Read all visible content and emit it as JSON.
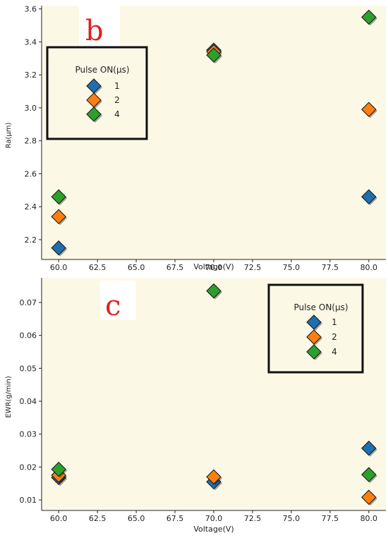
{
  "colors": {
    "plot_background": "#fbf9e6",
    "axis": "#222222",
    "panel_label": "#e02020",
    "legend_border": "#111111"
  },
  "chart_data": [
    {
      "type": "scatter",
      "panel_label": "b",
      "xlabel": "Voltage(V)",
      "ylabel": "Ra(µm)",
      "xlim": [
        58.9,
        81.1
      ],
      "ylim": [
        2.08,
        3.62
      ],
      "xticks": [
        60,
        62.5,
        65,
        67.5,
        70,
        72.5,
        75,
        77.5,
        80
      ],
      "xtick_labels": [
        "60.0",
        "62.5",
        "65.0",
        "67.5",
        "70.0",
        "72.5",
        "75.0",
        "77.5",
        "80.0"
      ],
      "yticks": [
        2.2,
        2.4,
        2.6,
        2.8,
        3.0,
        3.2,
        3.4,
        3.6
      ],
      "ytick_labels": [
        "2.2",
        "2.4",
        "2.6",
        "2.8",
        "3.0",
        "3.2",
        "3.4",
        "3.6"
      ],
      "grid": false,
      "marker": "diamond",
      "legend": {
        "title": "Pulse ON(µs)",
        "placement": "upper-left",
        "entries": [
          "1",
          "2",
          "4"
        ]
      },
      "series": [
        {
          "name": "1",
          "color": "#1f6fb0",
          "x": [
            60,
            70,
            80
          ],
          "y": [
            2.15,
            3.35,
            2.46
          ]
        },
        {
          "name": "2",
          "color": "#ff7f0e",
          "x": [
            60,
            70,
            80
          ],
          "y": [
            2.34,
            3.34,
            2.99
          ]
        },
        {
          "name": "4",
          "color": "#2ca02c",
          "x": [
            60,
            70,
            80
          ],
          "y": [
            2.46,
            3.32,
            3.55
          ]
        }
      ]
    },
    {
      "type": "scatter",
      "panel_label": "c",
      "xlabel": "Voltage(V)",
      "ylabel": "EWR(g/min)",
      "xlim": [
        58.9,
        81.1
      ],
      "ylim": [
        0.0068,
        0.0775
      ],
      "xticks": [
        60,
        62.5,
        65,
        67.5,
        70,
        72.5,
        75,
        77.5,
        80
      ],
      "xtick_labels": [
        "60.0",
        "62.5",
        "65.0",
        "67.5",
        "70.0",
        "72.5",
        "75.0",
        "77.5",
        "80.0"
      ],
      "yticks": [
        0.01,
        0.02,
        0.03,
        0.04,
        0.05,
        0.06,
        0.07
      ],
      "ytick_labels": [
        "0.01",
        "0.02",
        "0.03",
        "0.04",
        "0.05",
        "0.06",
        "0.07"
      ],
      "grid": false,
      "marker": "diamond",
      "legend": {
        "title": "Pulse ON(µs)",
        "placement": "upper-right",
        "entries": [
          "1",
          "2",
          "4"
        ]
      },
      "series": [
        {
          "name": "1",
          "color": "#1f6fb0",
          "x": [
            60,
            70,
            80
          ],
          "y": [
            0.0168,
            0.0155,
            0.0257
          ]
        },
        {
          "name": "2",
          "color": "#ff7f0e",
          "x": [
            60,
            70,
            80
          ],
          "y": [
            0.0175,
            0.017,
            0.0108
          ]
        },
        {
          "name": "4",
          "color": "#2ca02c",
          "x": [
            60,
            70,
            80
          ],
          "y": [
            0.0193,
            0.0735,
            0.0177
          ]
        }
      ]
    }
  ]
}
